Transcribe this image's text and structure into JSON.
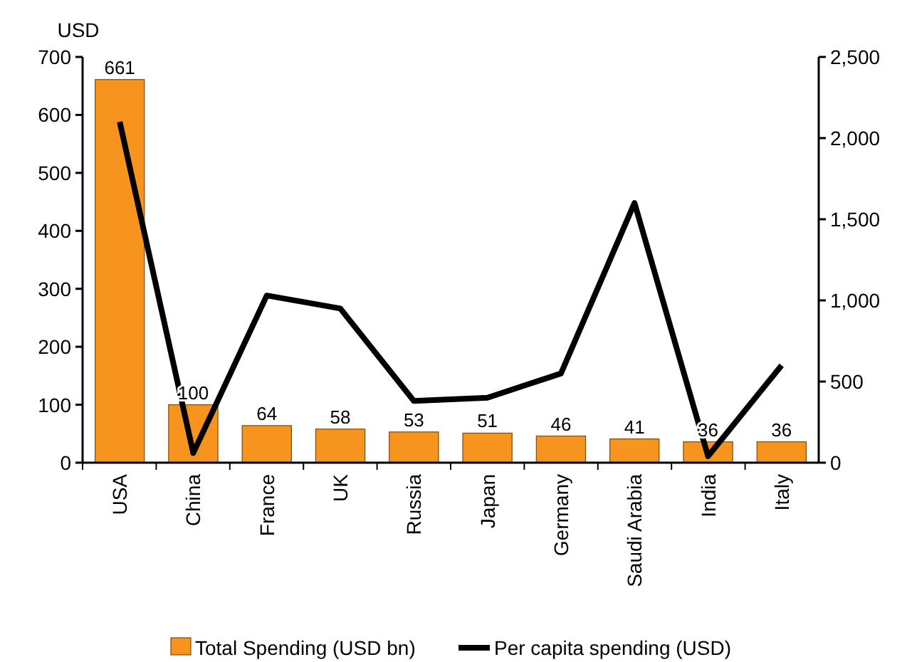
{
  "chart_data": {
    "type": "bar",
    "ylabel": "USD",
    "categories": [
      "USA",
      "China",
      "France",
      "UK",
      "Russia",
      "Japan",
      "Germany",
      "Saudi Arabia",
      "India",
      "Italy"
    ],
    "series": [
      {
        "name": "Total Spending (USD bn)",
        "color": "#f7941d",
        "values": [
          661,
          100,
          64,
          58,
          53,
          51,
          46,
          41,
          36,
          36
        ],
        "value_labels": [
          "661",
          "100",
          "64",
          "58",
          "53",
          "51",
          "46",
          "41",
          "36",
          "36"
        ]
      },
      {
        "name": "Per capita spending (USD)",
        "type": "line",
        "axis": "y2",
        "color": "#000000",
        "values": [
          2100,
          60,
          1030,
          950,
          380,
          400,
          550,
          1600,
          40,
          600
        ]
      }
    ],
    "ylim": [
      0,
      700
    ],
    "yticks": [
      0,
      100,
      200,
      300,
      400,
      500,
      600,
      700
    ],
    "y2lim": [
      0,
      2500
    ],
    "y2ticks": [
      0,
      500,
      {
        "value": 1000,
        "label": "1,000"
      },
      {
        "value": 1500,
        "label": "1,500"
      },
      {
        "value": 2000,
        "label": "2,000"
      },
      {
        "value": 2500,
        "label": "2,500"
      }
    ],
    "grid": false,
    "legend": "bottom",
    "marker": "none",
    "line_style": "solid"
  }
}
